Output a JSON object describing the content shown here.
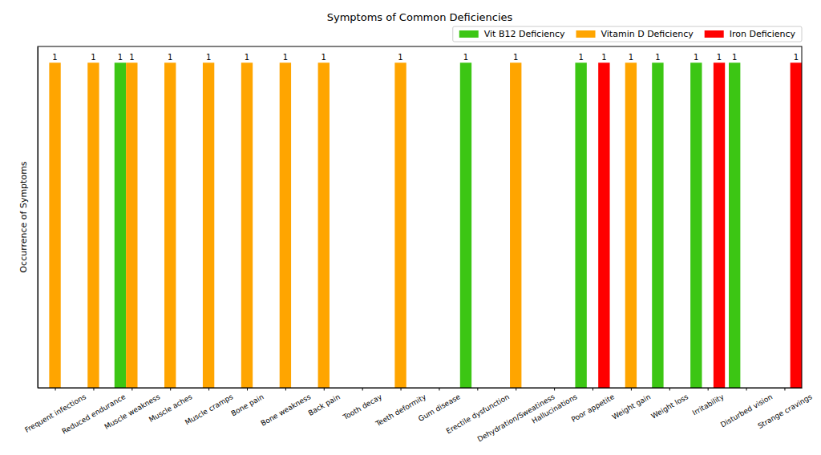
{
  "chart_data": {
    "type": "bar",
    "title": "Symptoms of Common Deficiencies",
    "ylabel": "Occurrence of Symptoms",
    "categories": [
      "Frequent infections",
      "Reduced endurance",
      "Muscle weakness",
      "Muscle aches",
      "Muscle cramps",
      "Bone pain",
      "Bone weakness",
      "Back pain",
      "Tooth decay",
      "Teeth deformity",
      "Gum disease",
      "Erectile dysfunction",
      "Dehydration/Sweatiness",
      "Hallucinations",
      "Poor appetite",
      "Weight gain",
      "Weight loss",
      "Irritability",
      "Disturbed vision",
      "Strange cravings"
    ],
    "series": [
      {
        "name": "Vit B12 Deficiency",
        "color": "#3cc614",
        "values": [
          null,
          null,
          1,
          null,
          null,
          null,
          null,
          null,
          null,
          null,
          null,
          1,
          null,
          null,
          1,
          null,
          1,
          1,
          1,
          null
        ]
      },
      {
        "name": "Vitamin D Deficiency",
        "color": "#ffa500",
        "values": [
          1,
          1,
          1,
          1,
          1,
          1,
          1,
          1,
          null,
          1,
          null,
          null,
          1,
          null,
          null,
          1,
          null,
          null,
          null,
          null
        ]
      },
      {
        "name": "Iron Deficiency",
        "color": "#ff0000",
        "values": [
          null,
          null,
          null,
          null,
          null,
          null,
          null,
          null,
          null,
          null,
          null,
          null,
          null,
          null,
          1,
          null,
          null,
          1,
          null,
          1
        ]
      }
    ],
    "ylim": [
      0,
      1.05
    ],
    "yticks": [],
    "tick_labels": "x",
    "data_labels": true,
    "legend": "upper right"
  }
}
